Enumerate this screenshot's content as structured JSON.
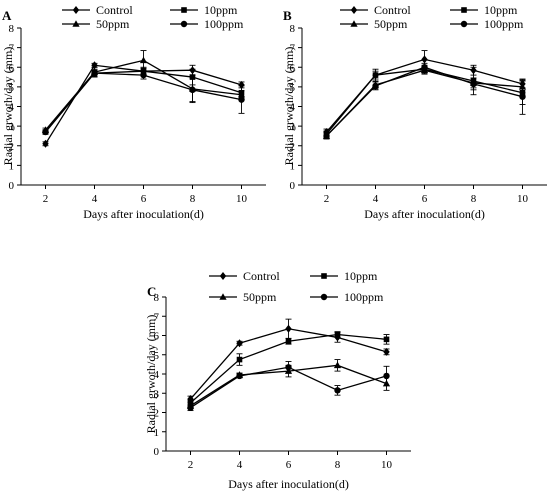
{
  "chart_data": [
    {
      "type": "line",
      "panel_label": "A",
      "ylabel": "Radial grwoth/day (mm)",
      "xlabel": "Days after inoculation(d)",
      "x": [
        2,
        4,
        6,
        8,
        10
      ],
      "xticks": [
        "2",
        "4",
        "6",
        "8",
        "10"
      ],
      "ylim": [
        0,
        8
      ],
      "yticks": [
        "0",
        "1",
        "2",
        "3",
        "4",
        "5",
        "6",
        "7",
        "8"
      ],
      "grid": false,
      "legend": "top",
      "series": [
        {
          "name": "Control",
          "marker": "diamond",
          "values": [
            2.1,
            6.1,
            5.8,
            5.85,
            5.1
          ],
          "errors": [
            0.1,
            0.1,
            0.15,
            0.25,
            0.15
          ]
        },
        {
          "name": "10ppm",
          "marker": "square",
          "values": [
            2.7,
            5.7,
            5.8,
            5.5,
            4.7
          ],
          "errors": [
            0.1,
            0.2,
            0.2,
            0.4,
            0.4
          ]
        },
        {
          "name": "50ppm",
          "marker": "triangle",
          "values": [
            2.8,
            5.75,
            6.35,
            4.9,
            4.6
          ],
          "errors": [
            0.1,
            0.25,
            0.5,
            0.7,
            0.2
          ]
        },
        {
          "name": "100ppm",
          "marker": "circle",
          "values": [
            2.7,
            5.7,
            5.6,
            4.85,
            4.35
          ],
          "errors": [
            0.1,
            0.15,
            0.2,
            0.6,
            0.7
          ]
        }
      ]
    },
    {
      "type": "line",
      "panel_label": "B",
      "ylabel": "Radial grwoth/day (mm)",
      "xlabel": "Days after inoculation(d)",
      "x": [
        2,
        4,
        6,
        8,
        10
      ],
      "xticks": [
        "2",
        "4",
        "6",
        "8",
        "10"
      ],
      "ylim": [
        0,
        8
      ],
      "yticks": [
        "0",
        "1",
        "2",
        "3",
        "4",
        "5",
        "6",
        "7",
        "8"
      ],
      "grid": false,
      "legend": "top",
      "series": [
        {
          "name": "Control",
          "marker": "diamond",
          "values": [
            2.7,
            5.6,
            6.4,
            5.85,
            5.15
          ],
          "errors": [
            0.15,
            0.3,
            0.45,
            0.25,
            0.2
          ]
        },
        {
          "name": "10ppm",
          "marker": "square",
          "values": [
            2.6,
            5.6,
            5.9,
            5.3,
            4.7
          ],
          "errors": [
            0.15,
            0.2,
            0.2,
            0.7,
            0.6
          ]
        },
        {
          "name": "50ppm",
          "marker": "triangle",
          "values": [
            2.5,
            5.1,
            5.85,
            5.2,
            5.0
          ],
          "errors": [
            0.15,
            0.2,
            0.2,
            0.25,
            0.3
          ]
        },
        {
          "name": "100ppm",
          "marker": "circle",
          "values": [
            2.5,
            5.05,
            6.0,
            5.15,
            4.5
          ],
          "errors": [
            0.15,
            0.2,
            0.2,
            0.3,
            0.9
          ]
        }
      ]
    },
    {
      "type": "line",
      "panel_label": "C",
      "ylabel": "Radial grwoth/day (mm)",
      "xlabel": "Days after inoculation(d)",
      "x": [
        2,
        4,
        6,
        8,
        10
      ],
      "xticks": [
        "2",
        "4",
        "6",
        "8",
        "10"
      ],
      "ylim": [
        0,
        8
      ],
      "yticks": [
        "0",
        "1",
        "2",
        "3",
        "4",
        "5",
        "6",
        "7",
        "8"
      ],
      "grid": false,
      "legend": "top",
      "series": [
        {
          "name": "Control",
          "marker": "diamond",
          "values": [
            2.7,
            5.6,
            6.35,
            5.9,
            5.15
          ],
          "errors": [
            0.15,
            0.1,
            0.5,
            0.25,
            0.15
          ]
        },
        {
          "name": "10ppm",
          "marker": "square",
          "values": [
            2.5,
            4.75,
            5.7,
            6.05,
            5.8
          ],
          "errors": [
            0.15,
            0.3,
            0.15,
            0.15,
            0.25
          ]
        },
        {
          "name": "50ppm",
          "marker": "triangle",
          "values": [
            2.35,
            3.95,
            4.15,
            4.45,
            3.5
          ],
          "errors": [
            0.15,
            0.1,
            0.3,
            0.3,
            0.35
          ]
        },
        {
          "name": "100ppm",
          "marker": "circle",
          "values": [
            2.25,
            3.9,
            4.35,
            3.15,
            3.9
          ],
          "errors": [
            0.15,
            0.1,
            0.3,
            0.25,
            0.5
          ]
        }
      ]
    }
  ]
}
